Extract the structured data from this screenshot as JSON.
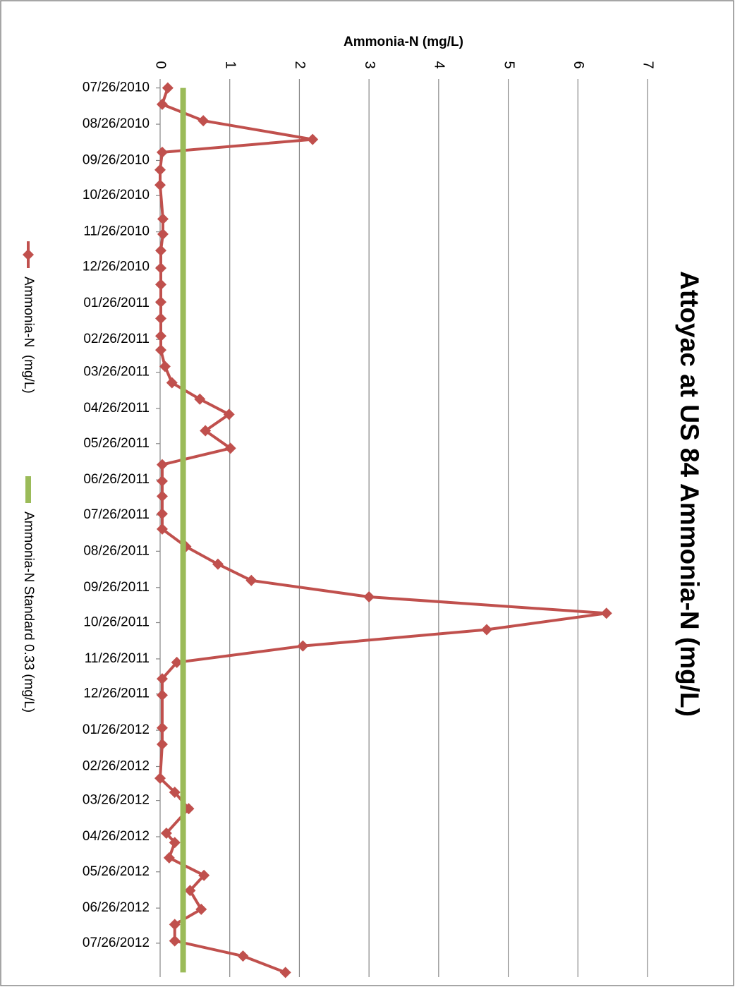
{
  "chart_data": {
    "type": "line",
    "title": "Attoyac at US 84 Ammonia-N (mg/L)",
    "value_axis_title": "Ammonia-N (mg/L)",
    "x": [
      "07/26/2010",
      "08/09/2010",
      "08/23/2010",
      "09/08/2010",
      "09/19/2010",
      "10/04/2010",
      "10/17/2010",
      "11/15/2010",
      "11/28/2010",
      "12/12/2010",
      "12/27/2010",
      "01/10/2011",
      "01/25/2011",
      "02/08/2011",
      "02/23/2011",
      "03/07/2011",
      "03/21/2011",
      "04/04/2011",
      "04/18/2011",
      "05/01/2011",
      "05/15/2011",
      "05/30/2011",
      "06/13/2011",
      "06/27/2011",
      "07/10/2011",
      "07/25/2011",
      "08/07/2011",
      "08/22/2011",
      "09/06/2011",
      "09/20/2011",
      "10/04/2011",
      "10/18/2011",
      "11/01/2011",
      "11/15/2011",
      "11/29/2011",
      "12/13/2011",
      "12/27/2011",
      "01/24/2012",
      "02/07/2012",
      "03/07/2012",
      "03/19/2012",
      "04/02/2012",
      "04/23/2012",
      "05/01/2012",
      "05/14/2012",
      "05/29/2012",
      "06/11/2012",
      "06/27/2012",
      "07/10/2012",
      "07/24/2012",
      "08/06/2012",
      "08/20/2012"
    ],
    "series": [
      {
        "name": "Ammonia-N  (mg/L)",
        "color": "#c0504d",
        "values": [
          0.11,
          0.03,
          0.62,
          2.19,
          0.03,
          0,
          0,
          0.04,
          0.04,
          0.01,
          0.01,
          0.01,
          0.01,
          0.01,
          0.01,
          0.01,
          0.07,
          0.17,
          0.57,
          0.99,
          0.65,
          1.01,
          0.03,
          0.03,
          0.03,
          0.03,
          0.03,
          0.37,
          0.83,
          1.31,
          3.0,
          6.41,
          4.69,
          2.05,
          0.24,
          0.03,
          0.03,
          0.03,
          0.03,
          0,
          0.21,
          0.41,
          0.09,
          0.21,
          0.13,
          0.63,
          0.43,
          0.59,
          0.21,
          0.21,
          1.19,
          1.8
        ]
      },
      {
        "name": "Ammonia-N Standard 0.33 (mg/L)",
        "color": "#9bbb59",
        "x": [
          "07/26/2010",
          "08/20/2012"
        ],
        "values": [
          0.33,
          0.33
        ]
      }
    ],
    "xlim": [
      "07/22/2010",
      "08/24/2012"
    ],
    "xticks": [
      "07/26/2010",
      "08/26/2010",
      "09/26/2010",
      "10/26/2010",
      "11/26/2010",
      "12/26/2010",
      "01/26/2011",
      "02/26/2011",
      "03/26/2011",
      "04/26/2011",
      "05/26/2011",
      "06/26/2011",
      "07/26/2011",
      "08/26/2011",
      "09/26/2011",
      "10/26/2011",
      "11/26/2011",
      "12/26/2011",
      "01/26/2012",
      "02/26/2012",
      "03/26/2012",
      "04/26/2012",
      "05/26/2012",
      "06/26/2012",
      "07/26/2012"
    ],
    "ylim": [
      0,
      7
    ],
    "yticks": [
      0,
      1,
      2,
      3,
      4,
      5,
      6,
      7
    ],
    "grid": true
  }
}
